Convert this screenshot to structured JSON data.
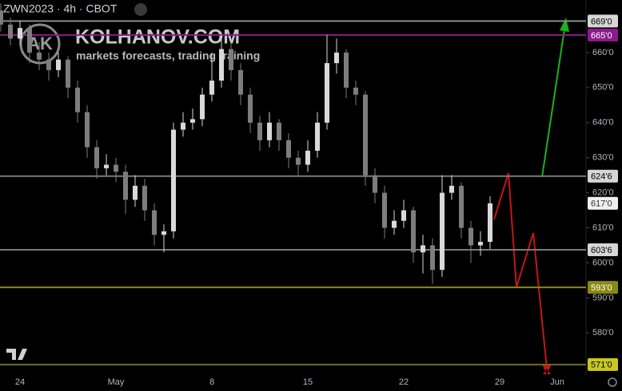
{
  "header": {
    "symbol": "ZWN2023 · 4h · CBOT"
  },
  "watermark": {
    "logo": "AK",
    "site": "KOLHANOV.COM",
    "tagline": "markets forecasts, trading training"
  },
  "chart_data": {
    "type": "candlestick",
    "categories": [
      null,
      null,
      "24",
      null,
      null,
      null,
      null,
      null,
      null,
      null,
      null,
      null,
      "May",
      null,
      null,
      null,
      null,
      null,
      null,
      null,
      null,
      null,
      "8",
      null,
      null,
      null,
      null,
      null,
      null,
      null,
      null,
      null,
      "15",
      null,
      null,
      null,
      null,
      null,
      null,
      null,
      null,
      null,
      "22",
      null,
      null,
      null,
      null,
      null,
      null,
      null,
      null,
      null,
      "29",
      null,
      null,
      null,
      null,
      null,
      "Jun"
    ],
    "open": [
      672,
      668,
      664,
      667,
      660,
      658,
      655,
      658,
      650,
      643,
      633,
      627,
      628,
      626,
      618,
      622,
      615,
      608,
      609,
      638,
      640,
      641,
      648,
      652,
      661,
      655,
      648,
      640,
      635,
      640,
      635,
      630,
      628,
      632,
      640,
      657,
      660,
      650,
      648,
      625,
      620,
      610,
      612,
      615,
      603,
      605,
      598,
      620,
      622,
      610,
      605,
      606,
      null,
      null,
      null,
      null,
      null,
      null,
      null
    ],
    "high": [
      674,
      670,
      669,
      668,
      663,
      660,
      660,
      659,
      652,
      645,
      635,
      631,
      630,
      628,
      625,
      624,
      617,
      611,
      640,
      643,
      644,
      650,
      660,
      665,
      663,
      657,
      650,
      642,
      643,
      641,
      637,
      632,
      635,
      643,
      665,
      664,
      661,
      652,
      649,
      627,
      622,
      615,
      618,
      616,
      608,
      607,
      625,
      625,
      623,
      612,
      609,
      619,
      null,
      null,
      null,
      null,
      null,
      null,
      null
    ],
    "low": [
      666,
      662,
      662,
      657,
      655,
      652,
      653,
      647,
      640,
      630,
      624,
      625,
      623,
      614,
      616,
      612,
      605,
      603,
      607,
      636,
      638,
      639,
      646,
      650,
      652,
      645,
      637,
      632,
      633,
      632,
      627,
      625,
      626,
      630,
      638,
      654,
      647,
      645,
      622,
      617,
      607,
      608,
      610,
      600,
      597,
      594,
      596,
      618,
      607,
      600,
      602,
      604,
      null,
      null,
      null,
      null,
      null,
      null,
      null
    ],
    "close": [
      668,
      664,
      667,
      660,
      658,
      655,
      658,
      650,
      643,
      633,
      627,
      628,
      626,
      618,
      622,
      615,
      608,
      609,
      638,
      640,
      641,
      648,
      652,
      661,
      655,
      648,
      640,
      635,
      640,
      635,
      630,
      628,
      632,
      640,
      657,
      660,
      650,
      648,
      625,
      620,
      610,
      612,
      615,
      603,
      605,
      598,
      620,
      622,
      610,
      605,
      606,
      617,
      null,
      null,
      null,
      null,
      null,
      null,
      null
    ],
    "up_color": "#d9d9d9",
    "down_color": "#7d7d7d",
    "ylim": [
      568,
      675
    ],
    "yticks": [
      {
        "value": 580,
        "label": "580'0"
      },
      {
        "value": 590,
        "label": "590'0"
      },
      {
        "value": 600,
        "label": "600'0"
      },
      {
        "value": 610,
        "label": "610'0"
      },
      {
        "value": 620,
        "label": "620'0"
      },
      {
        "value": 630,
        "label": "630'0"
      },
      {
        "value": 640,
        "label": "640'0"
      },
      {
        "value": 650,
        "label": "650'0"
      },
      {
        "value": 660,
        "label": "660'0"
      }
    ],
    "levels": [
      {
        "value": 669,
        "label": "669'0",
        "color": "#8a8a8a",
        "label_bg": "#d6d6d6",
        "label_color": "#000000"
      },
      {
        "value": 665,
        "label": "665'0",
        "color": "#8b1b8b",
        "label_bg": "#8b1b8b",
        "label_color": "#ffffff"
      },
      {
        "value": 624.75,
        "label": "624'6",
        "color": "#7a7a7a",
        "label_bg": "#d6d6d6",
        "label_color": "#000000"
      },
      {
        "value": 603.75,
        "label": "603'6",
        "color": "#7a7a7a",
        "label_bg": "#d6d6d6",
        "label_color": "#000000"
      },
      {
        "value": 593,
        "label": "593'0",
        "color": "#8a8a10",
        "label_bg": "#8a8a10",
        "label_color": "#ffffff"
      },
      {
        "value": 571,
        "label": "571'0",
        "color": "#6e6e10",
        "label_bg": "#c8c820",
        "label_color": "#000000"
      }
    ],
    "last_price": {
      "value": 617,
      "label": "617'0"
    },
    "grid": false
  }
}
